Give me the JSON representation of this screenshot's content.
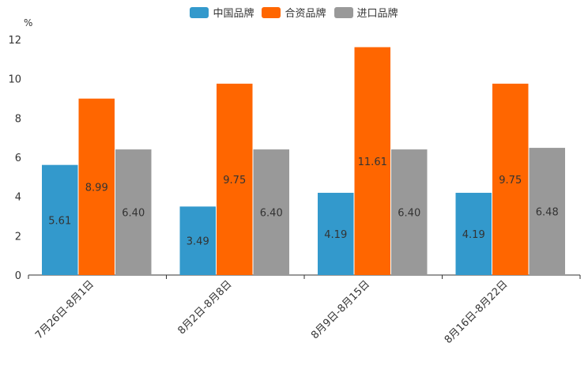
{
  "chart_data": {
    "type": "bar",
    "unit": "%",
    "categories": [
      "7月26日-8月1日",
      "8月2日-8月8日",
      "8月9日-8月15日",
      "8月16日-8月22日"
    ],
    "series": [
      {
        "name": "中国品牌",
        "color": "#3399cc",
        "values": [
          5.61,
          3.49,
          4.19,
          4.19
        ],
        "labels": [
          "5.61",
          "3.49",
          "4.19",
          "4.19"
        ]
      },
      {
        "name": "合资品牌",
        "color": "#ff6600",
        "values": [
          8.99,
          9.75,
          11.61,
          9.75
        ],
        "labels": [
          "8.99",
          "9.75",
          "11.61",
          "9.75"
        ]
      },
      {
        "name": "进口品牌",
        "color": "#999999",
        "values": [
          6.4,
          6.4,
          6.4,
          6.48
        ],
        "labels": [
          "6.40",
          "6.40",
          "6.40",
          "6.48"
        ]
      }
    ],
    "ylim": [
      0,
      12
    ],
    "yticks": [
      "0",
      "2",
      "4",
      "6",
      "8",
      "10",
      "12"
    ],
    "legend_position": "top-center"
  }
}
